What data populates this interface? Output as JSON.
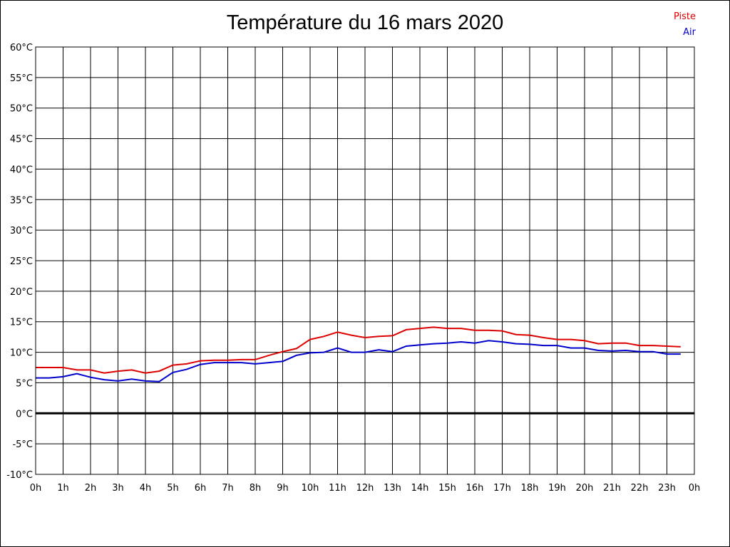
{
  "chart_data": {
    "type": "line",
    "title": "Température du 16 mars 2020",
    "xlabel": "",
    "ylabel": "",
    "ylim": [
      -10,
      60
    ],
    "y_step": 5,
    "y_unit": "°C",
    "y_ticks": [
      "60°C",
      "55°C",
      "50°C",
      "45°C",
      "40°C",
      "35°C",
      "30°C",
      "25°C",
      "20°C",
      "15°C",
      "10°C",
      "5°C",
      "0°C",
      "-5°C",
      "-10°C"
    ],
    "x_ticks": [
      "0h",
      "1h",
      "2h",
      "3h",
      "4h",
      "5h",
      "6h",
      "7h",
      "8h",
      "9h",
      "10h",
      "11h",
      "12h",
      "13h",
      "14h",
      "15h",
      "16h",
      "17h",
      "18h",
      "19h",
      "20h",
      "21h",
      "22h",
      "23h",
      "0h"
    ],
    "grid": true,
    "zero_line": true,
    "legend": "top-right",
    "series": [
      {
        "name": "Piste",
        "color": "#dd0000",
        "x": [
          0,
          0.5,
          1,
          1.5,
          2,
          2.5,
          3,
          3.5,
          4,
          4.5,
          5,
          5.5,
          6,
          6.5,
          7,
          7.5,
          8,
          8.5,
          9,
          9.5,
          10,
          10.5,
          11,
          11.5,
          12,
          12.5,
          13,
          13.5,
          14,
          14.5,
          15,
          15.5,
          16,
          16.5,
          17,
          17.5,
          18,
          18.5,
          19,
          19.5,
          20,
          20.5,
          21,
          21.5,
          22,
          22.5,
          23,
          23.5
        ],
        "values": [
          7.5,
          7.5,
          7.5,
          7.1,
          7.1,
          6.6,
          6.9,
          7.1,
          6.6,
          6.9,
          7.9,
          8.1,
          8.6,
          8.7,
          8.7,
          8.8,
          8.8,
          9.5,
          10.1,
          10.6,
          12.1,
          12.6,
          13.3,
          12.8,
          12.4,
          12.6,
          12.7,
          13.7,
          13.9,
          14.1,
          13.9,
          13.9,
          13.6,
          13.6,
          13.5,
          12.9,
          12.8,
          12.4,
          12.1,
          12.1,
          11.9,
          11.4,
          11.5,
          11.5,
          11.1,
          11.1,
          11.0,
          10.9
        ]
      },
      {
        "name": "Air",
        "color": "#0000cc",
        "x": [
          0,
          0.5,
          1,
          1.5,
          2,
          2.5,
          3,
          3.5,
          4,
          4.5,
          5,
          5.5,
          6,
          6.5,
          7,
          7.5,
          8,
          8.5,
          9,
          9.5,
          10,
          10.5,
          11,
          11.5,
          12,
          12.5,
          13,
          13.5,
          14,
          14.5,
          15,
          15.5,
          16,
          16.5,
          17,
          17.5,
          18,
          18.5,
          19,
          19.5,
          20,
          20.5,
          21,
          21.5,
          22,
          22.5,
          23,
          23.5
        ],
        "values": [
          5.8,
          5.8,
          6.0,
          6.5,
          5.9,
          5.5,
          5.3,
          5.6,
          5.3,
          5.2,
          6.7,
          7.2,
          8.0,
          8.3,
          8.3,
          8.3,
          8.1,
          8.3,
          8.5,
          9.5,
          9.9,
          10.0,
          10.7,
          10.0,
          10.0,
          10.4,
          10.1,
          11.0,
          11.2,
          11.4,
          11.5,
          11.7,
          11.5,
          11.9,
          11.7,
          11.4,
          11.3,
          11.1,
          11.1,
          10.7,
          10.7,
          10.3,
          10.2,
          10.3,
          10.1,
          10.1,
          9.7,
          9.7
        ]
      }
    ]
  }
}
